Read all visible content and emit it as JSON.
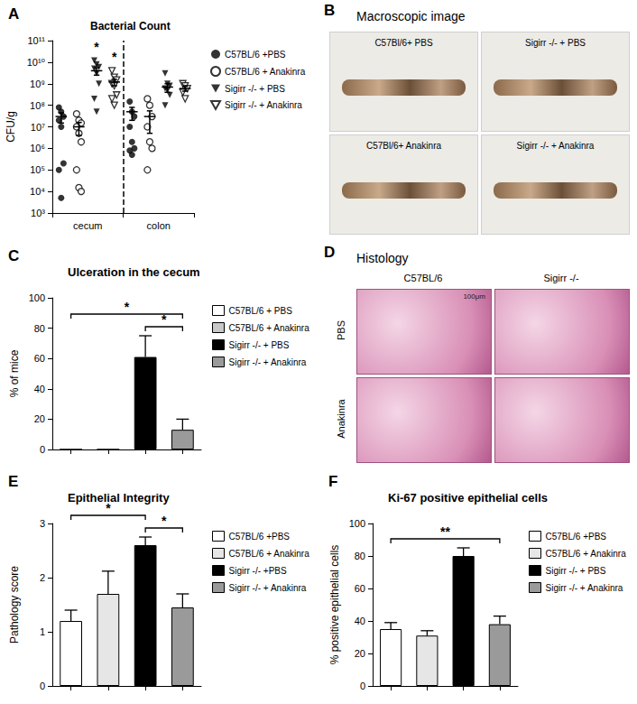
{
  "chart_data": [
    {
      "panel_label": "A",
      "type": "scatter",
      "title": "Bacterial Count",
      "ylabel": "CFU/g",
      "log": "y",
      "grid": false,
      "legend": "right",
      "categories": [
        "cecum",
        "colon"
      ],
      "ylim": [
        1000,
        100000000000
      ],
      "yticks": [
        {
          "value": 1000,
          "label": "10³"
        },
        {
          "value": 10000,
          "label": "10⁴"
        },
        {
          "value": 100000,
          "label": "10⁵"
        },
        {
          "value": 1000000,
          "label": "10⁶"
        },
        {
          "value": 10000000,
          "label": "10⁷"
        },
        {
          "value": 100000000,
          "label": "10⁸"
        },
        {
          "value": 1000000000,
          "label": "10⁹"
        },
        {
          "value": 10000000000,
          "label": "10¹⁰"
        },
        {
          "value": 100000000000,
          "label": "10¹¹"
        }
      ],
      "series": [
        {
          "name": "C57BL/6 +PBS",
          "marker": "circle",
          "color": "#000000",
          "values": [
            [
              80000000.0,
              50000000.0,
              30000000.0,
              20000000.0,
              10000000.0,
              200000.0,
              100000.0,
              5000.0
            ],
            [
              150000000.0,
              50000000.0,
              30000000.0,
              10000000.0,
              2000000.0,
              1000000.0,
              800000.0,
              500000.0
            ]
          ],
          "means": [
            30000000.0,
            50000000.0
          ],
          "errors": [
            15000000.0,
            30000000.0
          ]
        },
        {
          "name": "C57BL/6 + Anakinra",
          "marker": "open circle",
          "color": "#000000",
          "values": [
            [
              40000000.0,
              20000000.0,
              15000000.0,
              10000000.0,
              5000000.0,
              2000000.0,
              100000.0,
              15000.0,
              10000.0
            ],
            [
              200000000.0,
              100000000.0,
              30000000.0,
              10000000.0,
              2000000.0,
              1000000.0,
              100000.0
            ]
          ],
          "means": [
            10000000.0,
            30000000.0
          ],
          "errors": [
            6000000.0,
            25000000.0
          ]
        },
        {
          "name": "Sigirr -/- + PBS",
          "marker": "triangle-down",
          "color": "#000000",
          "values": [
            [
              12000000000.0,
              8000000000.0,
              6000000000.0,
              5000000000.0,
              3000000000.0,
              1000000000.0,
              200000000.0,
              50000000.0
            ],
            [
              3000000000.0,
              1000000000.0,
              800000000.0,
              600000000.0,
              500000000.0,
              300000000.0,
              100000000.0
            ]
          ],
          "means": [
            4000000000.0,
            700000000.0
          ],
          "errors": [
            1500000000.0,
            300000000.0
          ],
          "significance": [
            "*",
            null
          ]
        },
        {
          "name": "Sigirr -/- + Anakinra",
          "marker": "open triangle-down",
          "color": "#000000",
          "values": [
            [
              4000000000.0,
              2000000000.0,
              1500000000.0,
              1000000000.0,
              800000000.0,
              300000000.0,
              200000000.0,
              100000000.0
            ],
            [
              1000000000.0,
              800000000.0,
              600000000.0,
              400000000.0,
              200000000.0
            ]
          ],
          "means": [
            1200000000.0,
            600000000.0
          ],
          "errors": [
            400000000.0,
            150000000.0
          ],
          "significance": [
            "*",
            null
          ]
        }
      ]
    },
    {
      "panel_label": "C",
      "type": "bar",
      "title": "Ulceration in the cecum",
      "ylabel": "% of mice",
      "grid": false,
      "legend": "right",
      "tick_labels": "y",
      "categories": [
        "C57BL/6 + PBS",
        "C57BL/6 + Anakinra",
        "Sigirr -/- + PBS",
        "Sigirr -/- + Anakinra"
      ],
      "values": [
        0,
        0,
        61,
        13
      ],
      "errors": [
        0,
        0,
        14,
        7
      ],
      "colors": [
        "#ffffff",
        "#c8c8c8",
        "#000000",
        "#9a9a9a"
      ],
      "ylim": [
        0,
        100
      ],
      "yticks": [
        0,
        20,
        40,
        60,
        80,
        100
      ],
      "comparisons": [
        {
          "between": [
            "C57BL/6 + PBS",
            "Sigirr -/- + Anakinra"
          ],
          "label": "*"
        },
        {
          "between": [
            "Sigirr -/- + PBS",
            "Sigirr -/- + Anakinra"
          ],
          "label": "*"
        }
      ]
    },
    {
      "panel_label": "E",
      "type": "bar",
      "title": "Epithelial Integrity",
      "ylabel": "Pathology score",
      "grid": false,
      "legend": "right",
      "tick_labels": "y",
      "categories": [
        "C57BL/6 +PBS",
        "C57BL/6 + Anakinra",
        "Sigirr -/- +PBS",
        "Sigirr -/- + Anakinra"
      ],
      "values": [
        1.2,
        1.7,
        2.6,
        1.45
      ],
      "errors": [
        0.2,
        0.42,
        0.15,
        0.25
      ],
      "colors": [
        "#ffffff",
        "#e6e6e6",
        "#000000",
        "#9a9a9a"
      ],
      "ylim": [
        0,
        3
      ],
      "yticks": [
        0,
        1,
        2,
        3
      ],
      "comparisons": [
        {
          "between": [
            "C57BL/6 +PBS",
            "Sigirr -/- +PBS"
          ],
          "label": "*"
        },
        {
          "between": [
            "Sigirr -/- +PBS",
            "Sigirr -/- + Anakinra"
          ],
          "label": "*"
        }
      ]
    },
    {
      "panel_label": "F",
      "type": "bar",
      "title": "Ki-67 positive epithelial cells",
      "ylabel": "% positive epithelial cells",
      "grid": false,
      "legend": "right",
      "tick_labels": "y",
      "categories": [
        "C57BL/6 +PBS",
        "C57BL/6 + Anakinra",
        "Sigirr -/- + PBS",
        "Sigirr -/- + Anakinra"
      ],
      "values": [
        35,
        31,
        80,
        38
      ],
      "errors": [
        4,
        3,
        5,
        5
      ],
      "colors": [
        "#ffffff",
        "#e6e6e6",
        "#000000",
        "#9a9a9a"
      ],
      "ylim": [
        0,
        100
      ],
      "yticks": [
        0,
        20,
        40,
        60,
        80,
        100
      ],
      "comparisons": [
        {
          "between": [
            "C57BL/6 +PBS",
            "Sigirr -/- + Anakinra"
          ],
          "label": "**"
        }
      ]
    }
  ],
  "images": [
    {
      "panel_label": "B",
      "title": "Macroscopic image",
      "captions": [
        "C57Bl/6+ PBS",
        "Sigirr -/- + PBS",
        "C57Bl/6+ Anakinra",
        "Sigirr -/- + Anakinra"
      ]
    },
    {
      "panel_label": "D",
      "title": "Histology",
      "column_labels": [
        "C57BL/6",
        "Sigirr -/-"
      ],
      "row_labels": [
        "PBS",
        "Anakinra"
      ],
      "scale_bar": "100μm"
    }
  ]
}
